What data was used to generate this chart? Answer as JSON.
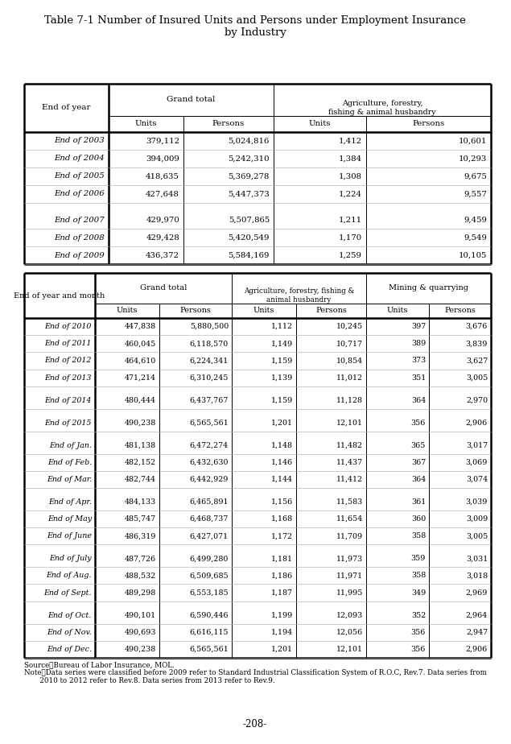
{
  "title": "Table 7-1 Number of Insured Units and Persons under Employment Insurance\nby Industry",
  "page_number": "-208-",
  "source": "Source：Bureau of Labor Insurance, MOL.",
  "note_line1": "Note：Data series were classified before 2009 refer to Standard Industrial Classification System of R.O.C, Rev.7. Data series from",
  "note_line2": "       2010 to 2012 refer to Rev.8. Data series from 2013 refer to Rev.9.",
  "top_section_data": [
    [
      "End of 2003",
      "379,112",
      "5,024,816",
      "1,412",
      "10,601"
    ],
    [
      "End of 2004",
      "394,009",
      "5,242,310",
      "1,384",
      "10,293"
    ],
    [
      "End of 2005",
      "418,635",
      "5,369,278",
      "1,308",
      "9,675"
    ],
    [
      "End of 2006",
      "427,648",
      "5,447,373",
      "1,224",
      "9,557"
    ],
    [
      "",
      "",
      "",
      "",
      ""
    ],
    [
      "End of 2007",
      "429,970",
      "5,507,865",
      "1,211",
      "9,459"
    ],
    [
      "End of 2008",
      "429,428",
      "5,420,549",
      "1,170",
      "9,549"
    ],
    [
      "End of 2009",
      "436,372",
      "5,584,169",
      "1,259",
      "10,105"
    ]
  ],
  "bottom_section_data": [
    [
      "End of 2010",
      "447,838",
      "5,880,500",
      "1,112",
      "10,245",
      "397",
      "3,676"
    ],
    [
      "End of 2011",
      "460,045",
      "6,118,570",
      "1,149",
      "10,717",
      "389",
      "3,839"
    ],
    [
      "End of 2012",
      "464,610",
      "6,224,341",
      "1,159",
      "10,854",
      "373",
      "3,627"
    ],
    [
      "End of 2013",
      "471,214",
      "6,310,245",
      "1,139",
      "11,012",
      "351",
      "3,005"
    ],
    [
      "",
      "",
      "",
      "",
      "",
      "",
      ""
    ],
    [
      "End of 2014",
      "480,444",
      "6,437,767",
      "1,159",
      "11,128",
      "364",
      "2,970"
    ],
    [
      "",
      "",
      "",
      "",
      "",
      "",
      ""
    ],
    [
      "End of 2015",
      "490,238",
      "6,565,561",
      "1,201",
      "12,101",
      "356",
      "2,906"
    ],
    [
      "",
      "",
      "",
      "",
      "",
      "",
      ""
    ],
    [
      "End of Jan.",
      "481,138",
      "6,472,274",
      "1,148",
      "11,482",
      "365",
      "3,017"
    ],
    [
      "End of Feb.",
      "482,152",
      "6,432,630",
      "1,146",
      "11,437",
      "367",
      "3,069"
    ],
    [
      "End of Mar.",
      "482,744",
      "6,442,929",
      "1,144",
      "11,412",
      "364",
      "3,074"
    ],
    [
      "",
      "",
      "",
      "",
      "",
      "",
      ""
    ],
    [
      "End of Apr.",
      "484,133",
      "6,465,891",
      "1,156",
      "11,583",
      "361",
      "3,039"
    ],
    [
      "End of May",
      "485,747",
      "6,468,737",
      "1,168",
      "11,654",
      "360",
      "3,009"
    ],
    [
      "End of June",
      "486,319",
      "6,427,071",
      "1,172",
      "11,709",
      "358",
      "3,005"
    ],
    [
      "",
      "",
      "",
      "",
      "",
      "",
      ""
    ],
    [
      "End of July",
      "487,726",
      "6,499,280",
      "1,181",
      "11,973",
      "359",
      "3,031"
    ],
    [
      "End of Aug.",
      "488,532",
      "6,509,685",
      "1,186",
      "11,971",
      "358",
      "3,018"
    ],
    [
      "End of Sept.",
      "489,298",
      "6,553,185",
      "1,187",
      "11,995",
      "349",
      "2,969"
    ],
    [
      "",
      "",
      "",
      "",
      "",
      "",
      ""
    ],
    [
      "End of Oct.",
      "490,101",
      "6,590,446",
      "1,199",
      "12,093",
      "352",
      "2,964"
    ],
    [
      "End of Nov.",
      "490,693",
      "6,616,115",
      "1,194",
      "12,056",
      "356",
      "2,947"
    ],
    [
      "End of Dec.",
      "490,238",
      "6,565,561",
      "1,201",
      "12,101",
      "356",
      "2,906"
    ]
  ]
}
